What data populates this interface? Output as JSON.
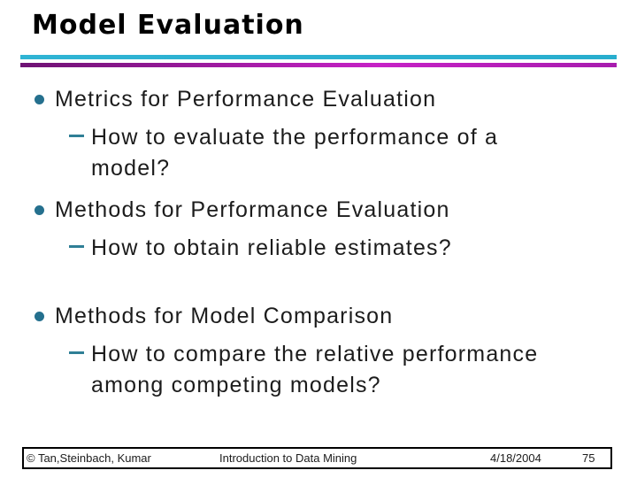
{
  "slide": {
    "title": "Model Evaluation",
    "bullets": [
      {
        "label": "Metrics for Performance Evaluation",
        "subs": [
          "How to evaluate the performance of a model?"
        ]
      },
      {
        "label": "Methods for Performance Evaluation",
        "subs": [
          "How to obtain reliable estimates?"
        ]
      },
      {
        "label": "Methods for Model Comparison",
        "subs": [
          "How to compare the relative performance among competing models?"
        ]
      }
    ],
    "footer": {
      "copyright": "© Tan,Steinbach, Kumar",
      "course_title": "Introduction to Data Mining",
      "date": "4/18/2004",
      "page_number": "75"
    },
    "colors": {
      "accent_cyan": "#28aece",
      "accent_magenta_dark": "#6e1273",
      "accent_magenta": "#c621c6",
      "bullet_dot": "#25708e",
      "sub_dash": "#2f7f96",
      "body_text": "#1c1c1c",
      "title_text": "#000000"
    }
  }
}
